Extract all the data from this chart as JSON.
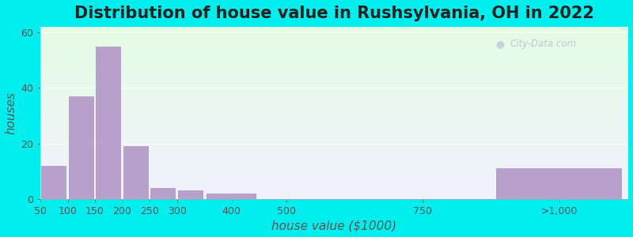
{
  "title": "Distribution of house value in Rushsylvania, OH in 2022",
  "xlabel": "house value ($1000)",
  "ylabel": "houses",
  "background_color": "#00EEEE",
  "bar_color": "#b8a0cc",
  "categories": [
    "50",
    "100",
    "150",
    "200",
    "250",
    "300",
    "400",
    "500",
    "750",
    ">1,000"
  ],
  "values": [
    12,
    37,
    55,
    19,
    4,
    3,
    2,
    0,
    0,
    11
  ],
  "bar_lefts": [
    50,
    100,
    150,
    200,
    250,
    300,
    350,
    450,
    500,
    875
  ],
  "bar_widths": [
    50,
    50,
    50,
    50,
    50,
    50,
    100,
    50,
    250,
    250
  ],
  "xlim": [
    50,
    1125
  ],
  "xtick_positions": [
    50,
    100,
    150,
    200,
    250,
    300,
    400,
    500,
    750,
    1000
  ],
  "xtick_labels": [
    "50",
    "100",
    "150",
    "200",
    "250",
    "300",
    "400",
    "500",
    "750",
    ">1,000"
  ],
  "ylim": [
    0,
    62
  ],
  "yticks": [
    0,
    20,
    40,
    60
  ],
  "title_fontsize": 15,
  "axis_label_fontsize": 11,
  "tick_fontsize": 9,
  "watermark": "City-Data.com"
}
